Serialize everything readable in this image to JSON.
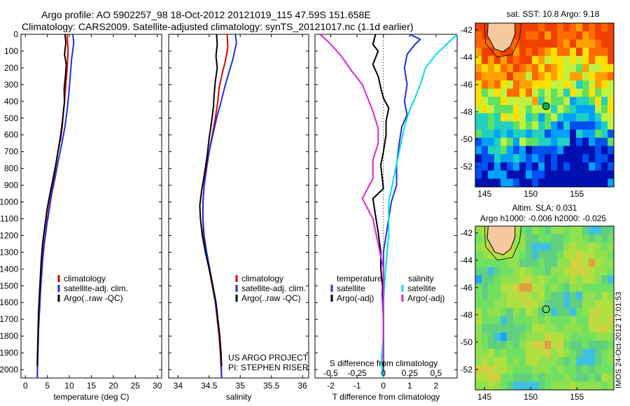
{
  "header": {
    "title_line1": "Argo profile: AO 5902257_98 18-Oct-2012 20121019_115 47.59S 151.658E",
    "title_line2": "Climatology: CARS2009. Satellite-adjusted climatology: synTS_20121017.nc (1.1d earlier)"
  },
  "credits": {
    "line1": "US ARGO PROJECT",
    "line2": "PI: STEPHEN RISER"
  },
  "timestamp": "IMOS 24-Oct-2012 17:01:53",
  "colors": {
    "climatology": "#e00000",
    "satellite": "#1f2fe0",
    "argo": "#000000",
    "salinity_satellite": "#00e0e0",
    "salinity_argo": "#e020e0",
    "land": "#f6c8a0",
    "marker": "#00b050"
  },
  "chart_data": [
    {
      "type": "line",
      "id": "temperature",
      "xlabel": "temperature (deg C)",
      "ylabel": "",
      "xlim": [
        -1,
        31
      ],
      "ylim": [
        2050,
        0
      ],
      "xticks": [
        0,
        5,
        10,
        15,
        20,
        25,
        30
      ],
      "yticks": [
        0,
        100,
        200,
        300,
        400,
        500,
        600,
        700,
        800,
        900,
        1000,
        1100,
        1200,
        1300,
        1400,
        1500,
        1600,
        1700,
        1800,
        1900,
        2000
      ],
      "legend": [
        "climatology",
        "satellite-adj. clim.",
        "Argo(..raw -QC)"
      ],
      "legend_position": "lower-right",
      "series": [
        {
          "name": "climatology",
          "color": "#e00000",
          "points": [
            [
              9.5,
              0
            ],
            [
              9.7,
              100
            ],
            [
              9.5,
              200
            ],
            [
              9.2,
              300
            ],
            [
              8.9,
              400
            ],
            [
              8.5,
              500
            ],
            [
              8.0,
              600
            ],
            [
              7.4,
              700
            ],
            [
              6.8,
              800
            ],
            [
              6.2,
              900
            ],
            [
              5.6,
              1000
            ],
            [
              5.0,
              1100
            ],
            [
              4.5,
              1200
            ],
            [
              4.0,
              1300
            ],
            [
              3.8,
              1400
            ],
            [
              3.5,
              1500
            ],
            [
              3.3,
              1600
            ],
            [
              3.1,
              1700
            ],
            [
              2.9,
              1800
            ],
            [
              2.8,
              1900
            ],
            [
              2.7,
              2050
            ]
          ]
        },
        {
          "name": "satellite-adj. clim.",
          "color": "#1f2fe0",
          "points": [
            [
              10.8,
              0
            ],
            [
              11.0,
              50
            ],
            [
              10.5,
              150
            ],
            [
              10.2,
              250
            ],
            [
              9.9,
              350
            ],
            [
              9.5,
              450
            ],
            [
              9.0,
              550
            ],
            [
              8.3,
              650
            ],
            [
              7.5,
              750
            ],
            [
              6.8,
              850
            ],
            [
              6.0,
              950
            ],
            [
              5.4,
              1050
            ],
            [
              4.8,
              1150
            ],
            [
              4.3,
              1250
            ],
            [
              3.9,
              1350
            ],
            [
              3.6,
              1450
            ],
            [
              3.4,
              1550
            ],
            [
              3.2,
              1650
            ],
            [
              3.0,
              1750
            ],
            [
              2.9,
              1850
            ],
            [
              2.8,
              1950
            ],
            [
              2.7,
              2050
            ]
          ]
        },
        {
          "name": "Argo(..raw -QC)",
          "color": "#000000",
          "points": [
            [
              9.0,
              0
            ],
            [
              9.2,
              50
            ],
            [
              8.9,
              120
            ],
            [
              9.3,
              180
            ],
            [
              9.1,
              250
            ],
            [
              8.8,
              330
            ],
            [
              8.9,
              400
            ],
            [
              8.6,
              470
            ],
            [
              8.4,
              540
            ],
            [
              8.0,
              620
            ],
            [
              7.4,
              700
            ],
            [
              6.9,
              780
            ],
            [
              6.3,
              860
            ],
            [
              5.6,
              950
            ],
            [
              4.9,
              1050
            ],
            [
              4.4,
              1150
            ],
            [
              3.9,
              1250
            ],
            [
              3.6,
              1350
            ],
            [
              3.4,
              1450
            ],
            [
              3.2,
              1550
            ],
            [
              3.0,
              1650
            ],
            [
              2.9,
              1750
            ],
            [
              2.8,
              1850
            ],
            [
              2.7,
              1980
            ]
          ]
        }
      ]
    },
    {
      "type": "line",
      "id": "salinity",
      "xlabel": "salinity",
      "ylabel": "",
      "xlim": [
        33.85,
        36.1
      ],
      "ylim": [
        2050,
        0
      ],
      "xticks": [
        34,
        34.5,
        35,
        35.5,
        36
      ],
      "legend": [
        "climatology",
        "satellite-adj. clim.",
        "Argo(..raw -QC)"
      ],
      "legend_position": "lower-right",
      "series": [
        {
          "name": "climatology",
          "color": "#e00000",
          "points": [
            [
              34.79,
              0
            ],
            [
              34.8,
              80
            ],
            [
              34.76,
              160
            ],
            [
              34.7,
              250
            ],
            [
              34.66,
              320
            ],
            [
              34.64,
              400
            ],
            [
              34.6,
              500
            ],
            [
              34.55,
              600
            ],
            [
              34.5,
              700
            ],
            [
              34.46,
              800
            ],
            [
              34.42,
              900
            ],
            [
              34.4,
              1000
            ],
            [
              34.4,
              1100
            ],
            [
              34.41,
              1200
            ],
            [
              34.45,
              1300
            ],
            [
              34.5,
              1400
            ],
            [
              34.55,
              1500
            ],
            [
              34.6,
              1600
            ],
            [
              34.63,
              1700
            ],
            [
              34.66,
              1800
            ],
            [
              34.68,
              1900
            ],
            [
              34.7,
              2050
            ]
          ]
        },
        {
          "name": "satellite-adj. clim.",
          "color": "#1f2fe0",
          "points": [
            [
              34.92,
              0
            ],
            [
              34.94,
              50
            ],
            [
              34.88,
              150
            ],
            [
              34.8,
              250
            ],
            [
              34.74,
              330
            ],
            [
              34.68,
              420
            ],
            [
              34.62,
              500
            ],
            [
              34.56,
              600
            ],
            [
              34.5,
              700
            ],
            [
              34.45,
              800
            ],
            [
              34.42,
              900
            ],
            [
              34.4,
              1000
            ],
            [
              34.4,
              1100
            ],
            [
              34.42,
              1200
            ],
            [
              34.46,
              1300
            ],
            [
              34.51,
              1400
            ],
            [
              34.56,
              1500
            ],
            [
              34.6,
              1600
            ],
            [
              34.64,
              1700
            ],
            [
              34.67,
              1800
            ],
            [
              34.69,
              1900
            ],
            [
              34.7,
              2050
            ]
          ]
        },
        {
          "name": "Argo(..raw -QC)",
          "color": "#000000",
          "points": [
            [
              34.62,
              0
            ],
            [
              34.63,
              60
            ],
            [
              34.61,
              130
            ],
            [
              34.63,
              200
            ],
            [
              34.6,
              280
            ],
            [
              34.58,
              360
            ],
            [
              34.57,
              430
            ],
            [
              34.54,
              520
            ],
            [
              34.5,
              620
            ],
            [
              34.47,
              720
            ],
            [
              34.43,
              820
            ],
            [
              34.38,
              930
            ],
            [
              34.35,
              1020
            ],
            [
              34.36,
              1100
            ],
            [
              34.39,
              1200
            ],
            [
              34.44,
              1300
            ],
            [
              34.5,
              1400
            ],
            [
              34.56,
              1500
            ],
            [
              34.61,
              1600
            ],
            [
              34.64,
              1700
            ],
            [
              34.67,
              1800
            ],
            [
              34.69,
              1900
            ],
            [
              34.7,
              1980
            ]
          ]
        }
      ]
    },
    {
      "type": "line",
      "id": "difference",
      "xlabel": "T difference from climatology",
      "xlabel_top": "S difference from climatology",
      "ylabel": "",
      "xlim": [
        -2.6,
        2.8
      ],
      "ylim": [
        2050,
        0
      ],
      "xticks": [
        -2,
        -1,
        0,
        1,
        2
      ],
      "xticks_top": [
        -0.5,
        -0.25,
        0,
        0.25,
        0.5
      ],
      "legend_headers": [
        "temperature",
        "salinity"
      ],
      "legend": [
        "satellite",
        "Argo(-adj)",
        "satellite",
        "Argo(-adj)"
      ],
      "legend_position": "lower-center",
      "series": [
        {
          "name": "satellite",
          "quantity": "temperature",
          "color": "#1f2fe0",
          "points": [
            [
              1.0,
              0
            ],
            [
              1.4,
              30
            ],
            [
              1.2,
              60
            ],
            [
              0.9,
              120
            ],
            [
              0.8,
              200
            ],
            [
              0.9,
              300
            ],
            [
              0.8,
              400
            ],
            [
              0.9,
              480
            ],
            [
              0.7,
              550
            ],
            [
              0.6,
              650
            ],
            [
              0.5,
              780
            ],
            [
              0.5,
              900
            ],
            [
              0.3,
              1000
            ],
            [
              0.2,
              1100
            ],
            [
              0.1,
              1200
            ],
            [
              0.0,
              1300
            ],
            [
              0.0,
              1450
            ],
            [
              -0.05,
              1550
            ],
            [
              0.0,
              1700
            ],
            [
              0.0,
              1800
            ],
            [
              0.0,
              1900
            ],
            [
              0.0,
              2050
            ]
          ]
        },
        {
          "name": "Argo(-adj)",
          "quantity": "temperature",
          "color": "#000000",
          "points": [
            [
              -0.3,
              0
            ],
            [
              -0.4,
              60
            ],
            [
              -0.2,
              100
            ],
            [
              -0.3,
              140
            ],
            [
              -0.4,
              180
            ],
            [
              -0.2,
              250
            ],
            [
              -0.1,
              320
            ],
            [
              0.0,
              380
            ],
            [
              0.2,
              440
            ],
            [
              0.1,
              520
            ],
            [
              0.1,
              600
            ],
            [
              0.0,
              700
            ],
            [
              -0.1,
              780
            ],
            [
              -0.05,
              850
            ],
            [
              0.0,
              920
            ],
            [
              -0.4,
              980
            ],
            [
              -0.3,
              1080
            ],
            [
              -0.2,
              1180
            ],
            [
              -0.1,
              1300
            ],
            [
              -0.1,
              1400
            ],
            [
              0.0,
              1550
            ],
            [
              0.0,
              1700
            ],
            [
              0.0,
              1850
            ],
            [
              0.0,
              1980
            ]
          ]
        },
        {
          "name": "satellite",
          "quantity": "salinity",
          "color": "#00e0e0",
          "points": [
            [
              0.7,
              0
            ],
            [
              0.6,
              60
            ],
            [
              0.5,
              120
            ],
            [
              0.4,
              200
            ],
            [
              0.35,
              300
            ],
            [
              0.3,
              380
            ],
            [
              0.25,
              450
            ],
            [
              0.2,
              550
            ],
            [
              0.15,
              700
            ],
            [
              0.1,
              850
            ],
            [
              0.05,
              1000
            ],
            [
              0.05,
              1200
            ],
            [
              0.02,
              1400
            ],
            [
              0.0,
              1600
            ],
            [
              0.0,
              1800
            ],
            [
              -0.02,
              1950
            ],
            [
              0.0,
              2050
            ]
          ]
        },
        {
          "name": "Argo(-adj)",
          "quantity": "salinity",
          "color": "#e020e0",
          "points": [
            [
              -0.6,
              0
            ],
            [
              -0.5,
              60
            ],
            [
              -0.4,
              130
            ],
            [
              -0.3,
              220
            ],
            [
              -0.2,
              300
            ],
            [
              -0.15,
              380
            ],
            [
              -0.1,
              460
            ],
            [
              -0.05,
              560
            ],
            [
              -0.05,
              650
            ],
            [
              -0.1,
              750
            ],
            [
              -0.1,
              860
            ],
            [
              -0.2,
              980
            ],
            [
              -0.1,
              1100
            ],
            [
              -0.05,
              1250
            ],
            [
              0.0,
              1400
            ],
            [
              0.0,
              1600
            ],
            [
              0.0,
              1800
            ],
            [
              0.0,
              1950
            ]
          ]
        }
      ]
    },
    {
      "type": "heatmap",
      "id": "sst_map",
      "title": "sat. SST: 10.8 Argo: 9.18",
      "xlim": [
        144,
        159
      ],
      "ylim": [
        -53.5,
        -41.5
      ],
      "xticks": [
        145,
        150,
        155
      ],
      "yticks": [
        -42,
        -44,
        -46,
        -48,
        -50,
        -52
      ],
      "argo_position": [
        151.658,
        -47.59
      ]
    },
    {
      "type": "heatmap",
      "id": "sla_map",
      "title_line1": "Altim. SLA: 0.031",
      "title_line2": "Argo h1000: -0.006 h2000: -0.025",
      "xlim": [
        144,
        159
      ],
      "ylim": [
        -53.5,
        -41.5
      ],
      "xticks": [
        145,
        150,
        155
      ],
      "yticks": [
        -42,
        -44,
        -46,
        -48,
        -50,
        -52
      ],
      "argo_position": [
        151.658,
        -47.59
      ]
    }
  ]
}
